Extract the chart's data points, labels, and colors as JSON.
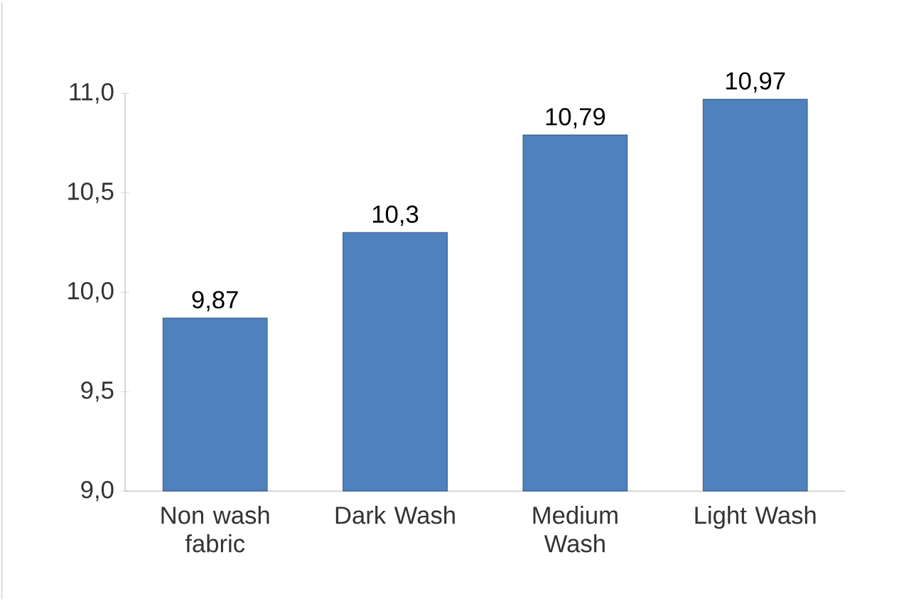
{
  "chart_data": {
    "type": "bar",
    "categories": [
      "Non wash fabric",
      "Dark Wash",
      "Medium Wash",
      "Light Wash"
    ],
    "values": [
      9.87,
      10.3,
      10.79,
      10.97
    ],
    "value_labels": [
      "9,87",
      "10,3",
      "10,79",
      "10,97"
    ],
    "color": "#4f81bd",
    "ylim": [
      9.0,
      11.0
    ],
    "yticks": [
      {
        "value": 9.0,
        "label": "9,0"
      },
      {
        "value": 9.5,
        "label": "9,5"
      },
      {
        "value": 10.0,
        "label": "10,0"
      },
      {
        "value": 10.5,
        "label": "10,5"
      },
      {
        "value": 11.0,
        "label": "11,0"
      }
    ]
  }
}
